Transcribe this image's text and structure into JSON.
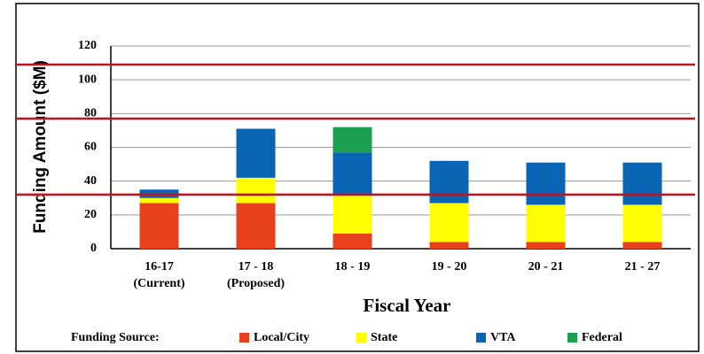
{
  "chart_data": {
    "type": "stacked_bar",
    "y_label": "Funding Amount ($M)",
    "x_label": "Fiscal Year",
    "legend_title": "Funding Source:",
    "categories": [
      [
        "16-17",
        "(Current)"
      ],
      [
        "17 - 18",
        "(Proposed)"
      ],
      [
        "18 - 19"
      ],
      [
        "19 - 20"
      ],
      [
        "20 - 21"
      ],
      [
        "21 - 27"
      ]
    ],
    "series": [
      {
        "name": "Local/City",
        "color": "#e8401c",
        "values": [
          27,
          27,
          9,
          4,
          4,
          4
        ]
      },
      {
        "name": "State",
        "color": "#ffff00",
        "values": [
          3,
          15,
          23,
          23,
          22,
          22
        ]
      },
      {
        "name": "VTA",
        "color": "#0a64b4",
        "values": [
          5,
          29,
          25,
          25,
          25,
          25
        ]
      },
      {
        "name": "Federal",
        "color": "#1aa050",
        "values": [
          0,
          0,
          15,
          0,
          0,
          0
        ]
      }
    ],
    "reference_lines": {
      "color": "#c0141c",
      "values": [
        109,
        77,
        32
      ]
    },
    "ylim": [
      0,
      120
    ],
    "yticks": [
      0,
      20,
      40,
      60,
      80,
      100,
      120
    ],
    "grid": true
  }
}
